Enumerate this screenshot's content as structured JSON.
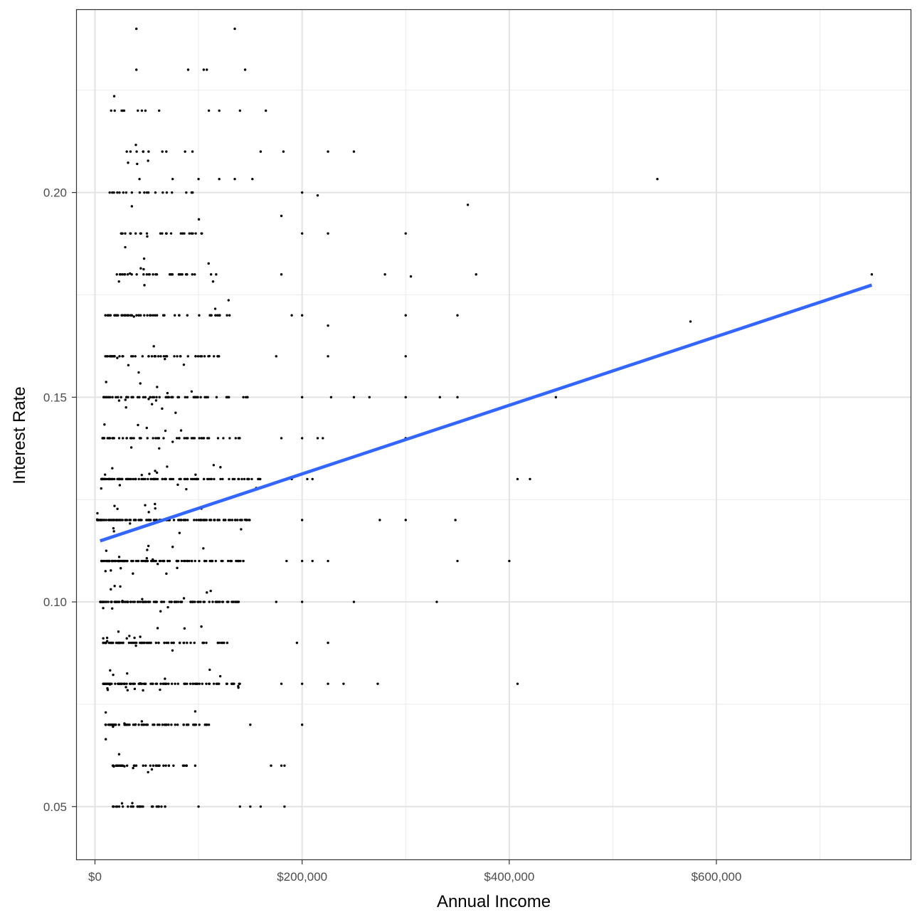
{
  "chart_data": {
    "type": "scatter",
    "title": "",
    "xlabel": "Annual Income",
    "ylabel": "Interest Rate",
    "xlim": [
      -17500,
      787500
    ],
    "ylim": [
      0.0371,
      0.2446
    ],
    "x_ticks": [
      {
        "value": 0,
        "label": "$0"
      },
      {
        "value": 200000,
        "label": "$200,000"
      },
      {
        "value": 400000,
        "label": "$400,000"
      },
      {
        "value": 600000,
        "label": "$600,000"
      }
    ],
    "x_minor": [
      100000,
      300000,
      500000,
      700000
    ],
    "y_ticks": [
      {
        "value": 0.05,
        "label": "0.05"
      },
      {
        "value": 0.1,
        "label": "0.10"
      },
      {
        "value": 0.15,
        "label": "0.15"
      },
      {
        "value": 0.2,
        "label": "0.20"
      }
    ],
    "y_minor": [
      0.075,
      0.125,
      0.175,
      0.225
    ],
    "grid": true,
    "point_color": "#000000",
    "fit_line": {
      "type": "linear",
      "color": "#3366FF",
      "x": [
        5000,
        750000
      ],
      "y": [
        0.1149,
        0.1774
      ]
    },
    "rate_bands": [
      {
        "y": 0.05,
        "x_range": [
          15000,
          70000
        ],
        "n": 28
      },
      {
        "y": 0.06,
        "x_range": [
          17000,
          100000
        ],
        "n": 45
      },
      {
        "y": 0.07,
        "x_range": [
          10000,
          115000
        ],
        "n": 70
      },
      {
        "y": 0.08,
        "x_range": [
          8000,
          140000
        ],
        "n": 110
      },
      {
        "y": 0.09,
        "x_range": [
          8000,
          130000
        ],
        "n": 80
      },
      {
        "y": 0.1,
        "x_range": [
          5000,
          140000
        ],
        "n": 120
      },
      {
        "y": 0.11,
        "x_range": [
          6000,
          145000
        ],
        "n": 120
      },
      {
        "y": 0.12,
        "x_range": [
          2000,
          150000
        ],
        "n": 130
      },
      {
        "y": 0.13,
        "x_range": [
          6000,
          160000
        ],
        "n": 120
      },
      {
        "y": 0.14,
        "x_range": [
          7000,
          140000
        ],
        "n": 60
      },
      {
        "y": 0.15,
        "x_range": [
          8000,
          150000
        ],
        "n": 75
      },
      {
        "y": 0.16,
        "x_range": [
          10000,
          120000
        ],
        "n": 55
      },
      {
        "y": 0.17,
        "x_range": [
          10000,
          130000
        ],
        "n": 55
      },
      {
        "y": 0.18,
        "x_range": [
          20000,
          120000
        ],
        "n": 40
      },
      {
        "y": 0.19,
        "x_range": [
          25000,
          110000
        ],
        "n": 30
      },
      {
        "y": 0.2,
        "x_range": [
          12000,
          100000
        ],
        "n": 20
      },
      {
        "y": 0.21,
        "x_range": [
          30000,
          100000
        ],
        "n": 14
      },
      {
        "y": 0.22,
        "x_range": [
          15000,
          90000
        ],
        "n": 10
      }
    ],
    "scattered_points": [
      [
        40000,
        0.24
      ],
      [
        135000,
        0.24
      ],
      [
        40000,
        0.23
      ],
      [
        90000,
        0.23
      ],
      [
        105000,
        0.23
      ],
      [
        108000,
        0.23
      ],
      [
        145000,
        0.23
      ],
      [
        110000,
        0.22
      ],
      [
        120000,
        0.22
      ],
      [
        140000,
        0.22
      ],
      [
        165000,
        0.22
      ],
      [
        160000,
        0.21
      ],
      [
        182000,
        0.21
      ],
      [
        225000,
        0.21
      ],
      [
        250000,
        0.21
      ],
      [
        43000,
        0.2033
      ],
      [
        75000,
        0.2033
      ],
      [
        100000,
        0.2033
      ],
      [
        120000,
        0.2033
      ],
      [
        135000,
        0.2033
      ],
      [
        152000,
        0.2033
      ],
      [
        200000,
        0.2
      ],
      [
        215000,
        0.1993
      ],
      [
        543000,
        0.2033
      ],
      [
        360000,
        0.197
      ],
      [
        180000,
        0.1943
      ],
      [
        200000,
        0.19
      ],
      [
        225000,
        0.19
      ],
      [
        300000,
        0.19
      ],
      [
        280000,
        0.18
      ],
      [
        305000,
        0.1795
      ],
      [
        368000,
        0.18
      ],
      [
        180000,
        0.18
      ],
      [
        200000,
        0.17
      ],
      [
        190000,
        0.17
      ],
      [
        300000,
        0.17
      ],
      [
        350000,
        0.17
      ],
      [
        225000,
        0.1675
      ],
      [
        575000,
        0.1685
      ],
      [
        750000,
        0.18
      ],
      [
        175000,
        0.16
      ],
      [
        225000,
        0.16
      ],
      [
        300000,
        0.16
      ],
      [
        60000,
        0.1525
      ],
      [
        70000,
        0.151
      ],
      [
        30000,
        0.1475
      ],
      [
        200000,
        0.15
      ],
      [
        228000,
        0.15
      ],
      [
        250000,
        0.15
      ],
      [
        265000,
        0.15
      ],
      [
        300000,
        0.15
      ],
      [
        333000,
        0.15
      ],
      [
        350000,
        0.15
      ],
      [
        445000,
        0.15
      ],
      [
        50000,
        0.1425
      ],
      [
        68000,
        0.1418
      ],
      [
        62000,
        0.1375
      ],
      [
        180000,
        0.14
      ],
      [
        200000,
        0.14
      ],
      [
        215000,
        0.14
      ],
      [
        220000,
        0.14
      ],
      [
        300000,
        0.14
      ],
      [
        190000,
        0.13
      ],
      [
        205000,
        0.13
      ],
      [
        210000,
        0.13
      ],
      [
        408000,
        0.13
      ],
      [
        420000,
        0.13
      ],
      [
        200000,
        0.12
      ],
      [
        275000,
        0.12
      ],
      [
        300000,
        0.12
      ],
      [
        348000,
        0.12
      ],
      [
        185000,
        0.11
      ],
      [
        200000,
        0.11
      ],
      [
        210000,
        0.11
      ],
      [
        225000,
        0.11
      ],
      [
        350000,
        0.11
      ],
      [
        400000,
        0.11
      ],
      [
        175000,
        0.1
      ],
      [
        200000,
        0.1
      ],
      [
        250000,
        0.1
      ],
      [
        330000,
        0.1
      ],
      [
        195000,
        0.09
      ],
      [
        225000,
        0.09
      ],
      [
        180000,
        0.08
      ],
      [
        200000,
        0.08
      ],
      [
        225000,
        0.08
      ],
      [
        240000,
        0.08
      ],
      [
        273000,
        0.08
      ],
      [
        408000,
        0.08
      ],
      [
        150000,
        0.07
      ],
      [
        200000,
        0.07
      ],
      [
        170000,
        0.06
      ],
      [
        180000,
        0.06
      ],
      [
        183000,
        0.06
      ],
      [
        100000,
        0.05
      ],
      [
        140000,
        0.05
      ],
      [
        150000,
        0.05
      ],
      [
        160000,
        0.05
      ],
      [
        183000,
        0.05
      ]
    ]
  }
}
